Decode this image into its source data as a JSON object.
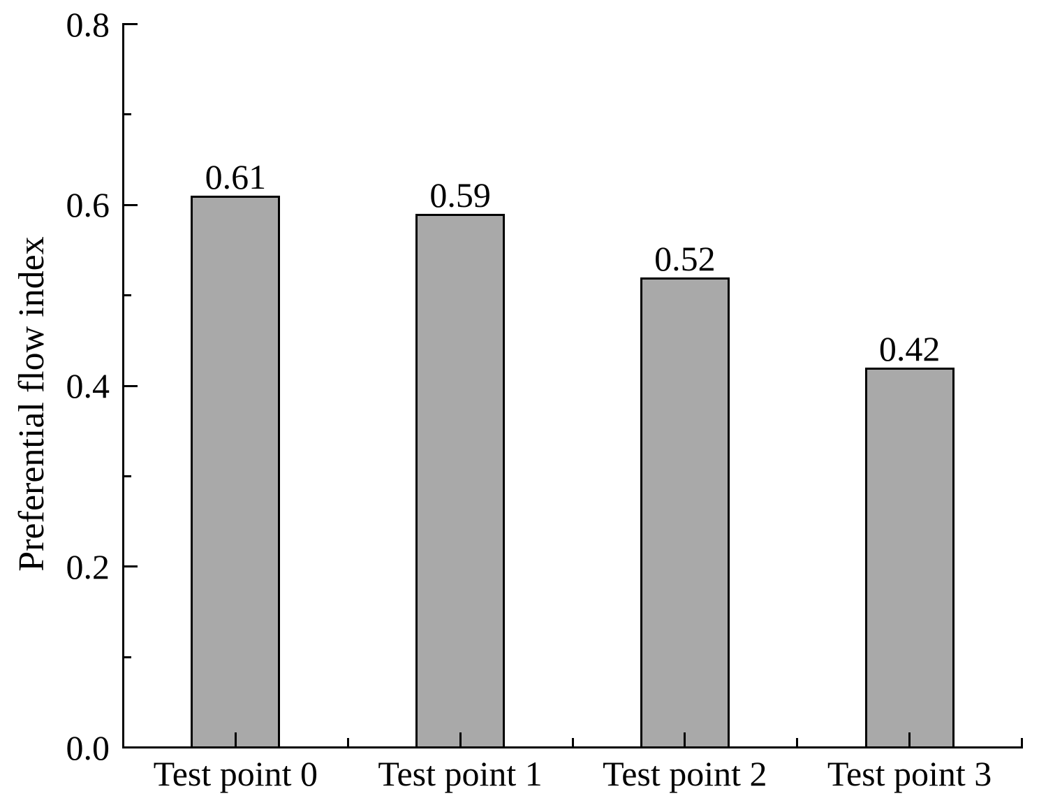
{
  "figure": {
    "background_color": "#ffffff",
    "text_color": "#000000"
  },
  "chart_data": {
    "type": "bar",
    "title": "",
    "categories": [
      "Test point 0",
      "Test point 1",
      "Test point 2",
      "Test point 3"
    ],
    "values": [
      0.61,
      0.59,
      0.52,
      0.42
    ],
    "value_labels": [
      "0.61",
      "0.59",
      "0.52",
      "0.42"
    ],
    "xlabel": "",
    "ylabel": "Preferential flow index",
    "ylim": [
      0,
      0.8
    ],
    "y_major_ticks": [
      0,
      0.2,
      0.4,
      0.6,
      0.8
    ],
    "y_major_tick_labels": [
      "0.0",
      "0.2",
      "0.4",
      "0.6",
      "0.8"
    ],
    "y_minor_ticks": [
      0.1,
      0.3,
      0.5,
      0.7
    ],
    "grid": false,
    "legend": "none",
    "bar_fill_color": "#a9a9a9",
    "bar_border_color": "#000000",
    "axis_color": "#000000"
  }
}
